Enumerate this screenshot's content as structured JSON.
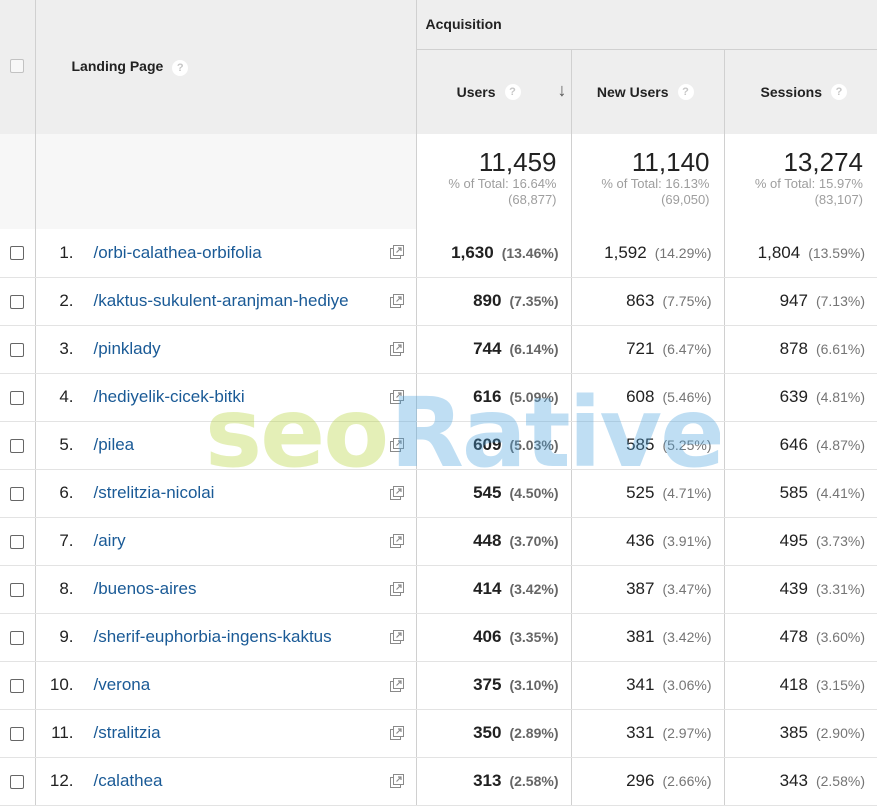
{
  "header": {
    "acquisition": "Acquisition",
    "landing_page": "Landing Page",
    "users": "Users",
    "new_users": "New Users",
    "sessions": "Sessions",
    "help": "?"
  },
  "totals": {
    "users": {
      "value": "11,459",
      "pct": "% of Total: 16.64%",
      "base": "(68,877)"
    },
    "new_users": {
      "value": "11,140",
      "pct": "% of Total: 16.13%",
      "base": "(69,050)"
    },
    "sessions": {
      "value": "13,274",
      "pct": "% of Total: 15.97%",
      "base": "(83,107)"
    }
  },
  "rows": [
    {
      "rank": "1.",
      "page": "/orbi-calathea-orbifolia",
      "users": "1,630",
      "users_pct": "(13.46%)",
      "new_users": "1,592",
      "new_users_pct": "(14.29%)",
      "sessions": "1,804",
      "sessions_pct": "(13.59%)"
    },
    {
      "rank": "2.",
      "page": "/kaktus-sukulent-aranjman-hediye",
      "users": "890",
      "users_pct": "(7.35%)",
      "new_users": "863",
      "new_users_pct": "(7.75%)",
      "sessions": "947",
      "sessions_pct": "(7.13%)"
    },
    {
      "rank": "3.",
      "page": "/pinklady",
      "users": "744",
      "users_pct": "(6.14%)",
      "new_users": "721",
      "new_users_pct": "(6.47%)",
      "sessions": "878",
      "sessions_pct": "(6.61%)"
    },
    {
      "rank": "4.",
      "page": "/hediyelik-cicek-bitki",
      "users": "616",
      "users_pct": "(5.09%)",
      "new_users": "608",
      "new_users_pct": "(5.46%)",
      "sessions": "639",
      "sessions_pct": "(4.81%)"
    },
    {
      "rank": "5.",
      "page": "/pilea",
      "users": "609",
      "users_pct": "(5.03%)",
      "new_users": "585",
      "new_users_pct": "(5.25%)",
      "sessions": "646",
      "sessions_pct": "(4.87%)"
    },
    {
      "rank": "6.",
      "page": "/strelitzia-nicolai",
      "users": "545",
      "users_pct": "(4.50%)",
      "new_users": "525",
      "new_users_pct": "(4.71%)",
      "sessions": "585",
      "sessions_pct": "(4.41%)"
    },
    {
      "rank": "7.",
      "page": "/airy",
      "users": "448",
      "users_pct": "(3.70%)",
      "new_users": "436",
      "new_users_pct": "(3.91%)",
      "sessions": "495",
      "sessions_pct": "(3.73%)"
    },
    {
      "rank": "8.",
      "page": "/buenos-aires",
      "users": "414",
      "users_pct": "(3.42%)",
      "new_users": "387",
      "new_users_pct": "(3.47%)",
      "sessions": "439",
      "sessions_pct": "(3.31%)"
    },
    {
      "rank": "9.",
      "page": "/sherif-euphorbia-ingens-kaktus",
      "users": "406",
      "users_pct": "(3.35%)",
      "new_users": "381",
      "new_users_pct": "(3.42%)",
      "sessions": "478",
      "sessions_pct": "(3.60%)"
    },
    {
      "rank": "10.",
      "page": "/verona",
      "users": "375",
      "users_pct": "(3.10%)",
      "new_users": "341",
      "new_users_pct": "(3.06%)",
      "sessions": "418",
      "sessions_pct": "(3.15%)"
    },
    {
      "rank": "11.",
      "page": "/stralitzia",
      "users": "350",
      "users_pct": "(2.89%)",
      "new_users": "331",
      "new_users_pct": "(2.97%)",
      "sessions": "385",
      "sessions_pct": "(2.90%)"
    },
    {
      "rank": "12.",
      "page": "/calathea",
      "users": "313",
      "users_pct": "(2.58%)",
      "new_users": "296",
      "new_users_pct": "(2.66%)",
      "sessions": "343",
      "sessions_pct": "(2.58%)"
    }
  ],
  "watermark": {
    "text_seo": "seo",
    "text_rative": "Rative"
  },
  "icons": {
    "sort": "arrow-down-icon",
    "external": "open-in-new-icon",
    "help": "help-circle-icon"
  },
  "colors": {
    "link": "#1a5a96",
    "header_bg": "#eeeeee",
    "watermark_green": "#b5d334",
    "watermark_blue": "#4aa3df"
  }
}
